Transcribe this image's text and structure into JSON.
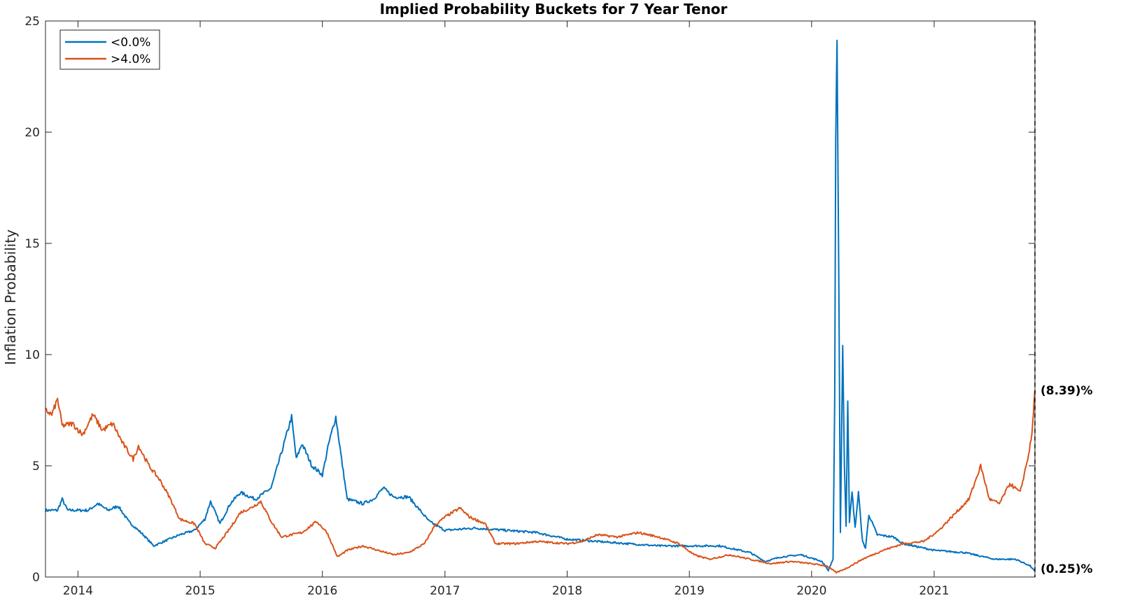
{
  "chart_data": {
    "type": "line",
    "title": "Implied Probability Buckets for 7 Year Tenor",
    "xlabel": "",
    "ylabel": "Inflation Probability",
    "xlim": [
      "2013-09-26",
      "2021-10-29"
    ],
    "ylim": [
      0,
      25
    ],
    "yticks": [
      0,
      5,
      10,
      15,
      20,
      25
    ],
    "xticks": [
      "2014",
      "2015",
      "2016",
      "2017",
      "2018",
      "2019",
      "2020",
      "2021"
    ],
    "grid": false,
    "legend_position": "top-left",
    "end_marker_date": "2021-10-29",
    "end_labels": [
      "(8.39)%",
      "(0.25)%"
    ],
    "series": [
      {
        "name": "<0.0%",
        "color": "#0072BD",
        "points": [
          [
            "2013-09-26",
            3.0
          ],
          [
            "2013-11-01",
            3.0
          ],
          [
            "2013-11-15",
            3.5
          ],
          [
            "2013-12-01",
            3.0
          ],
          [
            "2014-02-01",
            3.0
          ],
          [
            "2014-03-01",
            3.3
          ],
          [
            "2014-04-01",
            3.0
          ],
          [
            "2014-05-01",
            3.2
          ],
          [
            "2014-06-01",
            2.5
          ],
          [
            "2014-07-15",
            1.9
          ],
          [
            "2014-08-15",
            1.4
          ],
          [
            "2014-09-15",
            1.6
          ],
          [
            "2014-11-01",
            1.9
          ],
          [
            "2014-12-15",
            2.1
          ],
          [
            "2015-01-15",
            2.6
          ],
          [
            "2015-02-01",
            3.4
          ],
          [
            "2015-03-01",
            2.4
          ],
          [
            "2015-04-01",
            3.3
          ],
          [
            "2015-05-01",
            3.8
          ],
          [
            "2015-06-15",
            3.5
          ],
          [
            "2015-08-01",
            4.0
          ],
          [
            "2015-09-01",
            5.6
          ],
          [
            "2015-10-01",
            7.2
          ],
          [
            "2015-10-15",
            5.3
          ],
          [
            "2015-11-01",
            6.0
          ],
          [
            "2015-12-01",
            5.0
          ],
          [
            "2016-01-01",
            4.6
          ],
          [
            "2016-01-20",
            6.0
          ],
          [
            "2016-02-10",
            7.2
          ],
          [
            "2016-03-01",
            5.0
          ],
          [
            "2016-03-15",
            3.5
          ],
          [
            "2016-05-01",
            3.3
          ],
          [
            "2016-06-01",
            3.5
          ],
          [
            "2016-07-01",
            4.0
          ],
          [
            "2016-08-01",
            3.6
          ],
          [
            "2016-09-15",
            3.6
          ],
          [
            "2016-11-15",
            2.5
          ],
          [
            "2017-01-01",
            2.1
          ],
          [
            "2017-04-01",
            2.2
          ],
          [
            "2017-07-01",
            2.1
          ],
          [
            "2017-10-01",
            2.0
          ],
          [
            "2018-01-01",
            1.7
          ],
          [
            "2018-04-01",
            1.6
          ],
          [
            "2018-07-01",
            1.5
          ],
          [
            "2018-10-01",
            1.4
          ],
          [
            "2019-01-01",
            1.4
          ],
          [
            "2019-04-01",
            1.4
          ],
          [
            "2019-07-01",
            1.1
          ],
          [
            "2019-08-15",
            0.7
          ],
          [
            "2019-10-01",
            0.9
          ],
          [
            "2019-12-01",
            1.0
          ],
          [
            "2020-02-01",
            0.7
          ],
          [
            "2020-02-20",
            0.3
          ],
          [
            "2020-03-05",
            0.8
          ],
          [
            "2020-03-10",
            8.0
          ],
          [
            "2020-03-13",
            19.5
          ],
          [
            "2020-03-17",
            24.0
          ],
          [
            "2020-03-22",
            14.0
          ],
          [
            "2020-03-27",
            2.0
          ],
          [
            "2020-04-03",
            10.5
          ],
          [
            "2020-04-08",
            5.0
          ],
          [
            "2020-04-13",
            2.3
          ],
          [
            "2020-04-18",
            8.0
          ],
          [
            "2020-04-23",
            2.5
          ],
          [
            "2020-05-01",
            3.8
          ],
          [
            "2020-05-10",
            2.2
          ],
          [
            "2020-05-20",
            3.8
          ],
          [
            "2020-06-01",
            1.6
          ],
          [
            "2020-06-10",
            1.3
          ],
          [
            "2020-06-20",
            2.8
          ],
          [
            "2020-07-15",
            1.9
          ],
          [
            "2020-09-01",
            1.8
          ],
          [
            "2020-10-01",
            1.5
          ],
          [
            "2021-01-01",
            1.2
          ],
          [
            "2021-04-01",
            1.1
          ],
          [
            "2021-07-01",
            0.8
          ],
          [
            "2021-09-01",
            0.8
          ],
          [
            "2021-10-15",
            0.5
          ],
          [
            "2021-10-29",
            0.25
          ]
        ]
      },
      {
        "name": ">4.0%",
        "color": "#D95319",
        "points": [
          [
            "2013-09-26",
            7.5
          ],
          [
            "2013-10-15",
            7.3
          ],
          [
            "2013-11-01",
            8.0
          ],
          [
            "2013-11-15",
            6.8
          ],
          [
            "2013-12-15",
            6.9
          ],
          [
            "2014-01-15",
            6.4
          ],
          [
            "2014-02-15",
            7.3
          ],
          [
            "2014-03-15",
            6.6
          ],
          [
            "2014-04-15",
            6.9
          ],
          [
            "2014-05-15",
            6.0
          ],
          [
            "2014-06-15",
            5.3
          ],
          [
            "2014-07-01",
            5.9
          ],
          [
            "2014-08-01",
            5.0
          ],
          [
            "2014-09-01",
            4.4
          ],
          [
            "2014-10-01",
            3.6
          ],
          [
            "2014-11-01",
            2.6
          ],
          [
            "2014-12-15",
            2.4
          ],
          [
            "2015-01-15",
            1.5
          ],
          [
            "2015-02-15",
            1.3
          ],
          [
            "2015-04-01",
            2.2
          ],
          [
            "2015-05-01",
            2.9
          ],
          [
            "2015-06-01",
            3.1
          ],
          [
            "2015-07-01",
            3.4
          ],
          [
            "2015-08-01",
            2.5
          ],
          [
            "2015-09-01",
            1.8
          ],
          [
            "2015-11-01",
            2.0
          ],
          [
            "2015-12-15",
            2.5
          ],
          [
            "2016-01-15",
            2.0
          ],
          [
            "2016-02-15",
            0.9
          ],
          [
            "2016-03-15",
            1.2
          ],
          [
            "2016-05-01",
            1.4
          ],
          [
            "2016-06-15",
            1.2
          ],
          [
            "2016-08-01",
            1.0
          ],
          [
            "2016-09-15",
            1.1
          ],
          [
            "2016-11-01",
            1.5
          ],
          [
            "2016-12-01",
            2.3
          ],
          [
            "2017-01-01",
            2.7
          ],
          [
            "2017-02-15",
            3.1
          ],
          [
            "2017-03-15",
            2.7
          ],
          [
            "2017-05-01",
            2.4
          ],
          [
            "2017-06-01",
            1.5
          ],
          [
            "2017-08-01",
            1.5
          ],
          [
            "2017-10-01",
            1.6
          ],
          [
            "2018-01-01",
            1.5
          ],
          [
            "2018-02-15",
            1.6
          ],
          [
            "2018-04-01",
            1.9
          ],
          [
            "2018-06-01",
            1.8
          ],
          [
            "2018-08-01",
            2.0
          ],
          [
            "2018-10-01",
            1.8
          ],
          [
            "2018-12-01",
            1.5
          ],
          [
            "2019-01-15",
            1.0
          ],
          [
            "2019-03-01",
            0.8
          ],
          [
            "2019-05-01",
            1.0
          ],
          [
            "2019-07-01",
            0.8
          ],
          [
            "2019-09-01",
            0.6
          ],
          [
            "2019-11-01",
            0.7
          ],
          [
            "2020-01-01",
            0.6
          ],
          [
            "2020-02-15",
            0.5
          ],
          [
            "2020-03-15",
            0.2
          ],
          [
            "2020-04-15",
            0.4
          ],
          [
            "2020-06-01",
            0.8
          ],
          [
            "2020-08-01",
            1.2
          ],
          [
            "2020-10-01",
            1.5
          ],
          [
            "2020-12-01",
            1.6
          ],
          [
            "2021-01-15",
            2.1
          ],
          [
            "2021-03-01",
            2.8
          ],
          [
            "2021-04-15",
            3.5
          ],
          [
            "2021-05-20",
            5.0
          ],
          [
            "2021-06-15",
            3.5
          ],
          [
            "2021-07-15",
            3.3
          ],
          [
            "2021-08-15",
            4.2
          ],
          [
            "2021-09-15",
            3.8
          ],
          [
            "2021-10-10",
            5.5
          ],
          [
            "2021-10-20",
            6.4
          ],
          [
            "2021-10-29",
            8.39
          ]
        ]
      }
    ]
  }
}
